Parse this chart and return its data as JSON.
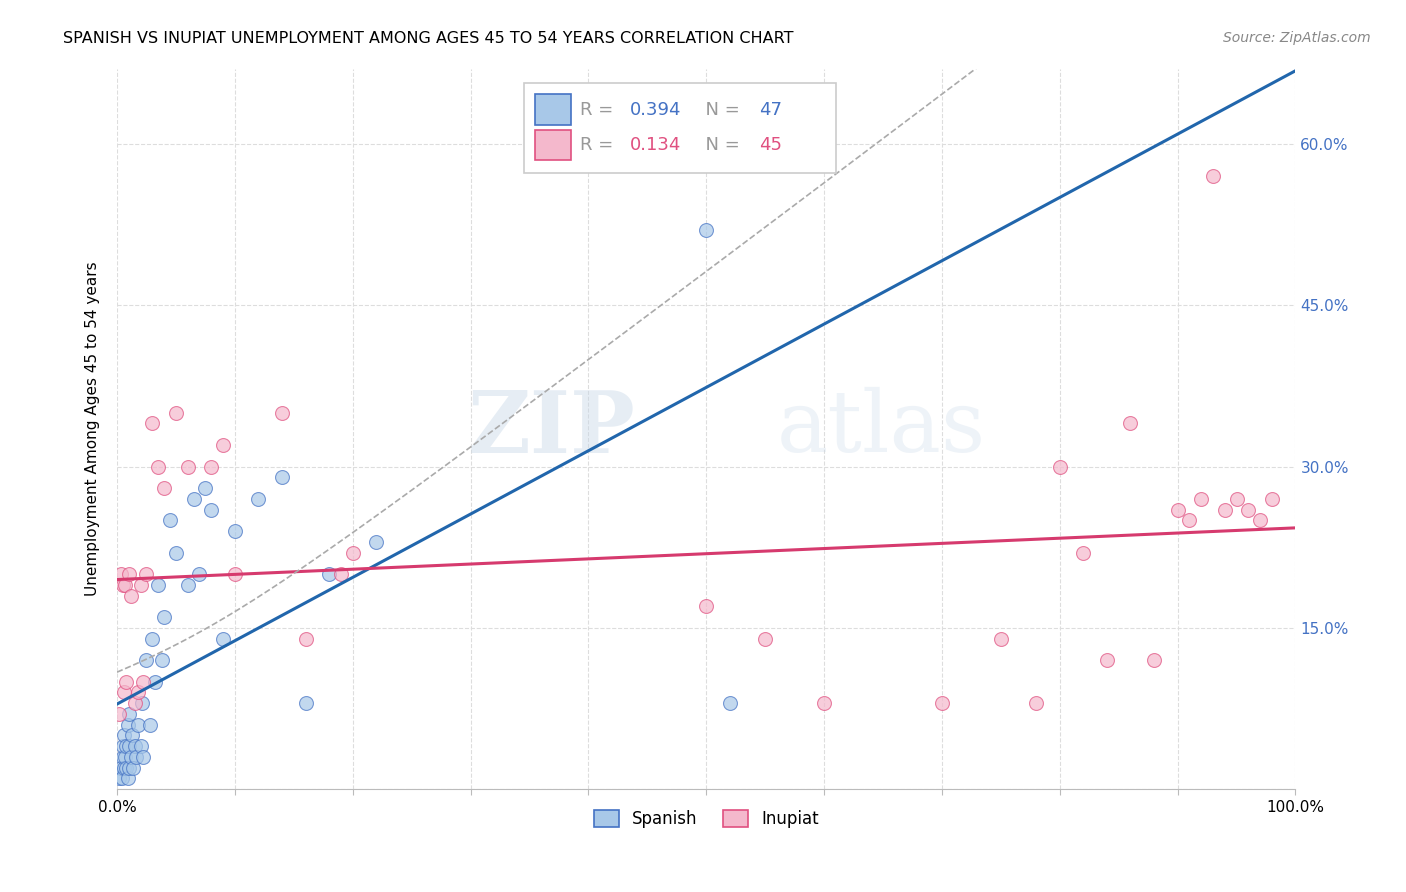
{
  "title": "SPANISH VS INUPIAT UNEMPLOYMENT AMONG AGES 45 TO 54 YEARS CORRELATION CHART",
  "source": "Source: ZipAtlas.com",
  "ylabel": "Unemployment Among Ages 45 to 54 years",
  "xlim": [
    0,
    1.0
  ],
  "ylim": [
    0,
    0.67
  ],
  "xticks": [
    0.0,
    0.1,
    0.2,
    0.3,
    0.4,
    0.5,
    0.6,
    0.7,
    0.8,
    0.9,
    1.0
  ],
  "xticklabels": [
    "0.0%",
    "",
    "",
    "",
    "",
    "",
    "",
    "",
    "",
    "",
    "100.0%"
  ],
  "yticks": [
    0.0,
    0.15,
    0.3,
    0.45,
    0.6
  ],
  "yticklabels": [
    "",
    "15.0%",
    "30.0%",
    "45.0%",
    "60.0%"
  ],
  "watermark_zip": "ZIP",
  "watermark_atlas": "atlas",
  "spanish_color": "#a8c8e8",
  "spanish_edge": "#4472c4",
  "inupiat_color": "#f4b8cc",
  "inupiat_edge": "#e05080",
  "trend_spanish_color": "#2166ac",
  "trend_inupiat_color": "#d63a6e",
  "ci_color": "#aaaaaa",
  "ytick_color": "#4472c4",
  "spanish_R": 0.394,
  "spanish_N": 47,
  "inupiat_R": 0.134,
  "inupiat_N": 45,
  "spanish_x": [
    0.002,
    0.003,
    0.004,
    0.005,
    0.005,
    0.006,
    0.006,
    0.007,
    0.008,
    0.008,
    0.009,
    0.009,
    0.01,
    0.01,
    0.01,
    0.012,
    0.013,
    0.014,
    0.015,
    0.016,
    0.018,
    0.02,
    0.021,
    0.022,
    0.025,
    0.028,
    0.03,
    0.032,
    0.035,
    0.038,
    0.04,
    0.045,
    0.05,
    0.06,
    0.065,
    0.07,
    0.075,
    0.08,
    0.09,
    0.1,
    0.12,
    0.14,
    0.16,
    0.18,
    0.22,
    0.5,
    0.52
  ],
  "spanish_y": [
    0.01,
    0.02,
    0.01,
    0.03,
    0.04,
    0.02,
    0.05,
    0.03,
    0.02,
    0.04,
    0.01,
    0.06,
    0.02,
    0.04,
    0.07,
    0.03,
    0.05,
    0.02,
    0.04,
    0.03,
    0.06,
    0.04,
    0.08,
    0.03,
    0.12,
    0.06,
    0.14,
    0.1,
    0.19,
    0.12,
    0.16,
    0.25,
    0.22,
    0.19,
    0.27,
    0.2,
    0.28,
    0.26,
    0.14,
    0.24,
    0.27,
    0.29,
    0.08,
    0.2,
    0.23,
    0.52,
    0.08
  ],
  "inupiat_x": [
    0.002,
    0.003,
    0.005,
    0.006,
    0.007,
    0.008,
    0.01,
    0.012,
    0.015,
    0.018,
    0.02,
    0.022,
    0.025,
    0.03,
    0.035,
    0.04,
    0.05,
    0.06,
    0.08,
    0.09,
    0.1,
    0.14,
    0.16,
    0.19,
    0.2,
    0.5,
    0.55,
    0.6,
    0.7,
    0.75,
    0.78,
    0.8,
    0.82,
    0.84,
    0.86,
    0.88,
    0.9,
    0.91,
    0.92,
    0.93,
    0.94,
    0.95,
    0.96,
    0.97,
    0.98
  ],
  "inupiat_y": [
    0.07,
    0.2,
    0.19,
    0.09,
    0.19,
    0.1,
    0.2,
    0.18,
    0.08,
    0.09,
    0.19,
    0.1,
    0.2,
    0.34,
    0.3,
    0.28,
    0.35,
    0.3,
    0.3,
    0.32,
    0.2,
    0.35,
    0.14,
    0.2,
    0.22,
    0.17,
    0.14,
    0.08,
    0.08,
    0.14,
    0.08,
    0.3,
    0.22,
    0.12,
    0.34,
    0.12,
    0.26,
    0.25,
    0.27,
    0.57,
    0.26,
    0.27,
    0.26,
    0.25,
    0.27
  ]
}
